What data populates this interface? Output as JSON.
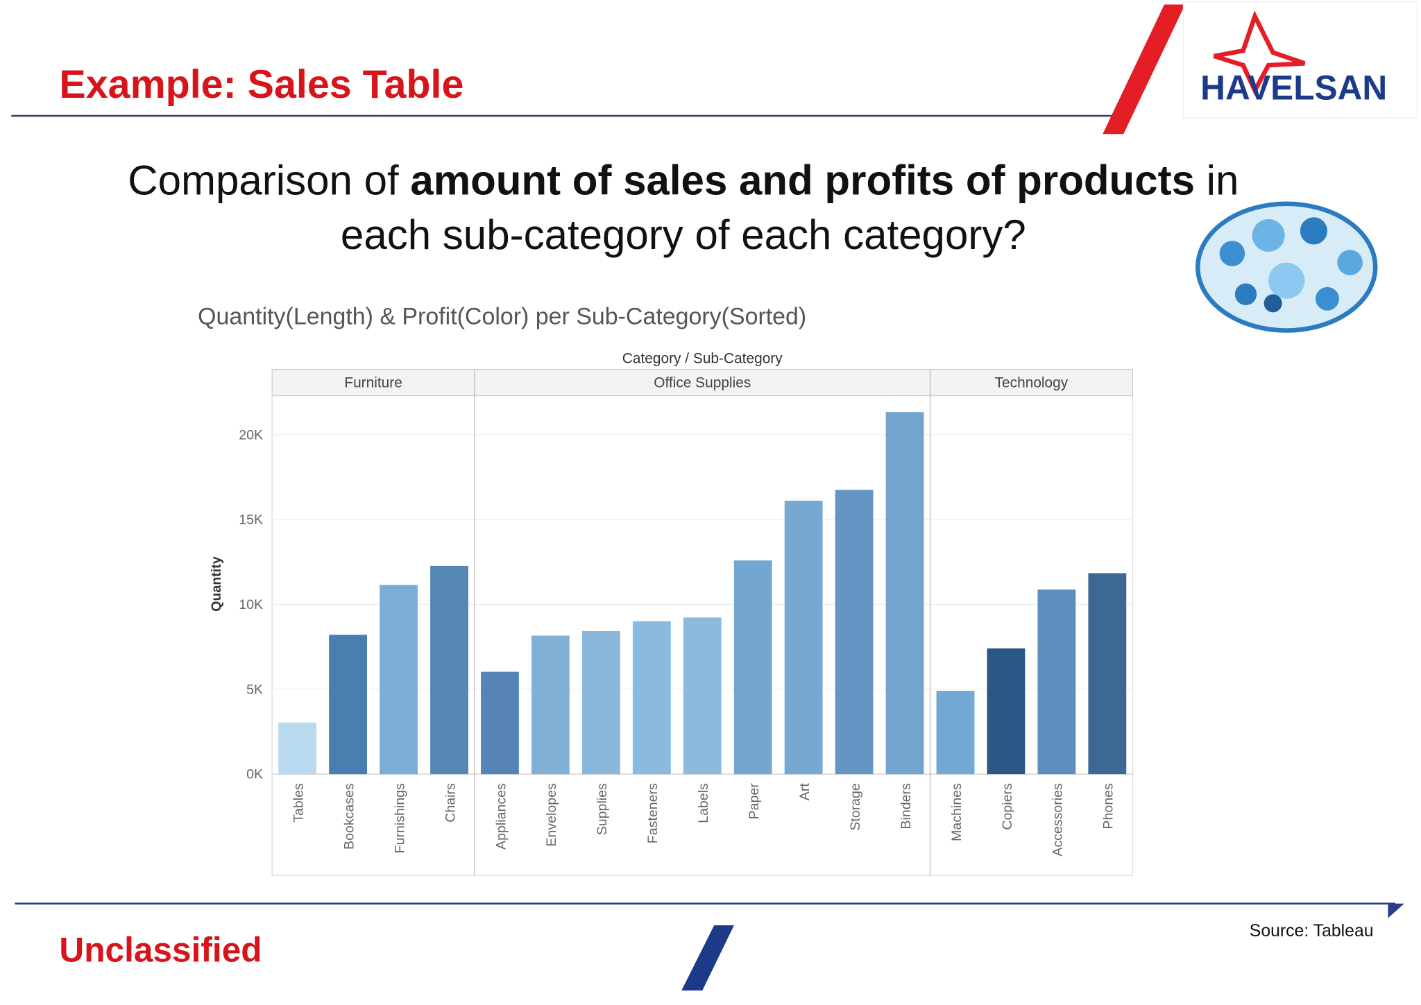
{
  "slide": {
    "title": "Example: Sales Table",
    "heading": {
      "line1": [
        "Comparison of ",
        "amount of sales and profits of products",
        " in"
      ],
      "line2": "each sub-category of each category?"
    },
    "logo": "HAVELSAN",
    "classification": "Unclassified",
    "source": "Source: Tableau"
  },
  "chart_data": {
    "type": "bar",
    "title": "Quantity(Length) & Profit(Color) per Sub-Category(Sorted)",
    "x_label": "Category / Sub-Category",
    "y_label": "Quantity",
    "groups": [
      {
        "name": "Furniture",
        "categories": [
          "Tables",
          "Bookcases",
          "Furnishings",
          "Chairs"
        ],
        "values": [
          3040,
          8210,
          11150,
          12270
        ],
        "colors": [
          "#b9d9ee",
          "#4a7db0",
          "#7aaed6",
          "#5587b5"
        ]
      },
      {
        "name": "Office Supplies",
        "categories": [
          "Appliances",
          "Envelopes",
          "Supplies",
          "Fasteners",
          "Labels",
          "Paper",
          "Art",
          "Storage",
          "Binders"
        ],
        "values": [
          6030,
          8160,
          8430,
          9010,
          9230,
          12590,
          16110,
          16750,
          21330
        ],
        "colors": [
          "#5584b5",
          "#81b0d7",
          "#8ab7da",
          "#8bbae0",
          "#8cb9dd",
          "#74a7d0",
          "#76a9d2",
          "#6595c4",
          "#72a4cd"
        ]
      },
      {
        "name": "Technology",
        "categories": [
          "Machines",
          "Copiers",
          "Accessories",
          "Phones"
        ],
        "values": [
          4910,
          7410,
          10880,
          11840
        ],
        "colors": [
          "#74a8d4",
          "#2b5784",
          "#5c8ebf",
          "#3e6894"
        ]
      }
    ],
    "ylim": [
      0,
      22300
    ],
    "yticks": [
      {
        "value": 0,
        "label": "0K"
      },
      {
        "value": 5000,
        "label": "5K"
      },
      {
        "value": 10000,
        "label": "10K"
      },
      {
        "value": 15000,
        "label": "15K"
      },
      {
        "value": 20000,
        "label": "20K"
      }
    ],
    "grid": true
  }
}
